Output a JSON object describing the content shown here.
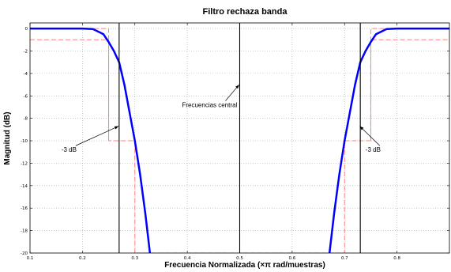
{
  "chart_data": {
    "type": "line",
    "title": "Filtro rechaza banda",
    "xlabel": "Frecuencia Normalizada (×π rad/muestras)",
    "ylabel": "Magnitud (dB)",
    "xlim": [
      0.1,
      0.9
    ],
    "ylim": [
      -20,
      0.5
    ],
    "x_ticks": [
      0.1,
      0.2,
      0.3,
      0.4,
      0.5,
      0.6,
      0.7,
      0.8
    ],
    "x_tick_labels": [
      "0.1",
      "0.2",
      "0.3",
      "0.4",
      "0.5",
      "0.6",
      "0.7",
      "0.8"
    ],
    "y_ticks": [
      0,
      -2,
      -4,
      -6,
      -8,
      -10,
      -12,
      -14,
      -16,
      -18,
      -20
    ],
    "y_tick_labels": [
      "0",
      "-2",
      "-4",
      "-6",
      "-8",
      "-10",
      "-12",
      "-14",
      "-16",
      "-18",
      "-20"
    ],
    "grid": true,
    "series": [
      {
        "style": "solid",
        "color": "#0000ff",
        "x": [
          0.1,
          0.2,
          0.22,
          0.24,
          0.25,
          0.26,
          0.27,
          0.28,
          0.29,
          0.3,
          0.31,
          0.32,
          0.33,
          0.67,
          0.68,
          0.69,
          0.7,
          0.71,
          0.72,
          0.73,
          0.74,
          0.75,
          0.76,
          0.78,
          0.8,
          0.9
        ],
        "y": [
          0,
          0,
          -0.05,
          -0.5,
          -1.2,
          -2.0,
          -3.0,
          -5.0,
          -7.5,
          -10.0,
          -13.0,
          -16.5,
          -20.5,
          -20.5,
          -16.5,
          -13.0,
          -10.0,
          -7.5,
          -5.0,
          -3.0,
          -2.0,
          -1.2,
          -0.5,
          -0.05,
          0,
          0
        ]
      },
      {
        "style": "dashed",
        "color": "#ff8080",
        "x": [
          0.1,
          0.25,
          0.25,
          0.3,
          0.3,
          0.7,
          0.7,
          0.75,
          0.75,
          0.9
        ],
        "y": [
          -1,
          -1,
          -10,
          -10,
          -20,
          -20,
          -10,
          -10,
          -1,
          -1
        ]
      },
      {
        "style": "dashed",
        "color": "#ff8080",
        "x": [
          0.1,
          0.25,
          0.25
        ],
        "y": [
          0,
          0,
          -10
        ]
      },
      {
        "style": "dashed",
        "color": "#ff8080",
        "x": [
          0.75,
          0.75,
          0.9
        ],
        "y": [
          -10,
          0,
          0
        ]
      }
    ],
    "vlines": [
      0.27,
      0.5,
      0.73
    ],
    "annotations": [
      {
        "text": "-3 dB",
        "x": 0.16,
        "y": -11.0,
        "arrow_to": [
          0.269,
          -8.7
        ]
      },
      {
        "text": "Frecuencias central",
        "x": 0.39,
        "y": -7.0,
        "arrow_to": [
          0.499,
          -5.0
        ]
      },
      {
        "text": "-3 dB",
        "x": 0.74,
        "y": -11.0,
        "arrow_to": [
          0.729,
          -8.7
        ]
      }
    ]
  }
}
